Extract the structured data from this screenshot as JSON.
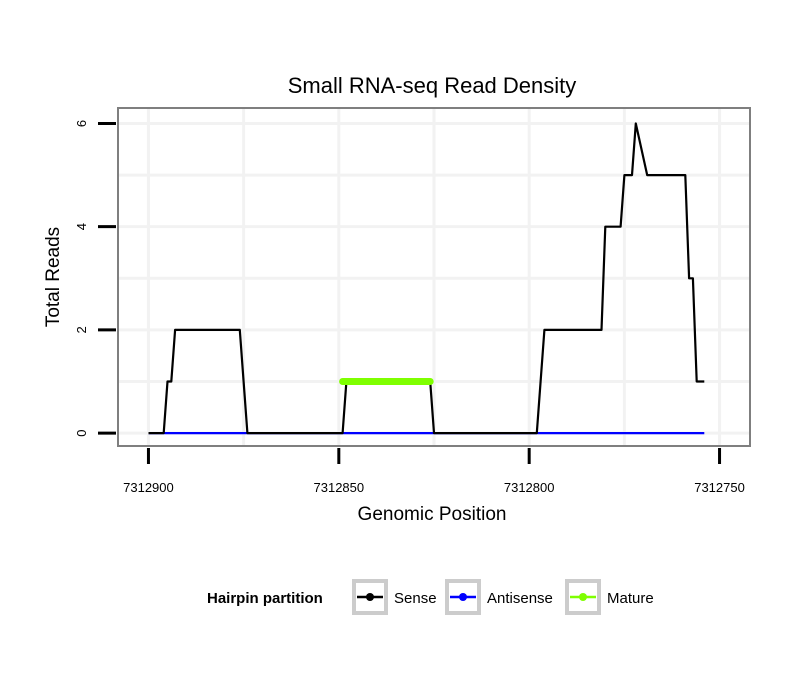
{
  "chart_data": {
    "type": "line",
    "title": "Small RNA-seq Read Density",
    "xlabel": "Genomic Position",
    "ylabel": "Total Reads",
    "x_reversed": true,
    "xlim": [
      7312908,
      7312742
    ],
    "ylim": [
      -0.25,
      6.3
    ],
    "x_ticks": [
      7312900,
      7312850,
      7312800,
      7312750
    ],
    "x_tick_labels": [
      "7312900",
      "7312850",
      "7312800",
      "7312750"
    ],
    "y_ticks": [
      0,
      2,
      4,
      6
    ],
    "y_tick_labels": [
      "0",
      "2",
      "4",
      "6"
    ],
    "grid": true,
    "legend": {
      "title": "Hairpin partition",
      "placement": "bottom",
      "entries": [
        "Sense",
        "Antisense",
        "Mature"
      ]
    },
    "series": [
      {
        "name": "Sense",
        "color": "#000000",
        "x": [
          7312900,
          7312896,
          7312895,
          7312894,
          7312893,
          7312876,
          7312874,
          7312849,
          7312848,
          7312826,
          7312825,
          7312798,
          7312796,
          7312781,
          7312780,
          7312776,
          7312775,
          7312773,
          7312772,
          7312769,
          7312759,
          7312758,
          7312757,
          7312756,
          7312754
        ],
        "y": [
          0,
          0,
          1,
          1,
          2,
          2,
          0,
          0,
          1,
          1,
          0,
          0,
          2,
          2,
          4,
          4,
          5,
          5,
          6,
          5,
          5,
          3,
          3,
          1,
          1
        ]
      },
      {
        "name": "Antisense",
        "color": "#0000ff",
        "x": [
          7312900,
          7312754
        ],
        "y": [
          0,
          0
        ]
      },
      {
        "name": "Mature",
        "color": "#7fff00",
        "x": [
          7312849,
          7312826
        ],
        "y": [
          1,
          1
        ]
      }
    ]
  }
}
